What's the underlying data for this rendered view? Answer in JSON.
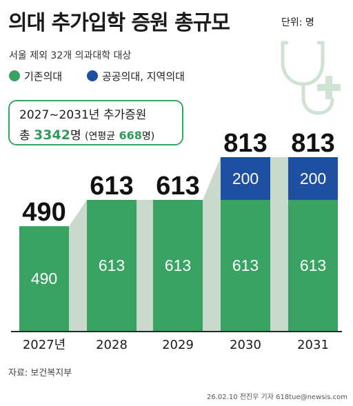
{
  "title": "의대 추가입학 증원 총규모",
  "unit": "단위: 명",
  "subtitle": "서울 제외 32개 의과대학 대상",
  "legend": [
    {
      "label": "기존의대",
      "color": "#3aa364"
    },
    {
      "label": "공공의대, 지역의대",
      "color": "#1f4fa0"
    }
  ],
  "summary": {
    "line1": "2027~2031년 추가증원",
    "total_prefix": "총",
    "total_value": "3342",
    "total_suffix": "명",
    "avg_prefix": "(연평균",
    "avg_value": "668",
    "avg_suffix": "명)"
  },
  "chart_data": {
    "type": "bar",
    "stacked": true,
    "categories": [
      "2027년",
      "2028",
      "2029",
      "2030",
      "2031"
    ],
    "series": [
      {
        "name": "기존의대",
        "values": [
          490,
          613,
          613,
          613,
          613
        ],
        "color": "#3aa364"
      },
      {
        "name": "공공의대, 지역의대",
        "values": [
          0,
          0,
          0,
          200,
          200
        ],
        "color": "#1f4fa0"
      }
    ],
    "totals": [
      490,
      613,
      613,
      813,
      813
    ],
    "ylim": [
      0,
      813
    ],
    "connector_color": "#c9d9cc",
    "total_label_color": "#111111",
    "segment_label_color": "#ffffff"
  },
  "source": "자료: 보건복지부",
  "byline": "26.02.10 전진우 기자 618tue@newsis.com"
}
